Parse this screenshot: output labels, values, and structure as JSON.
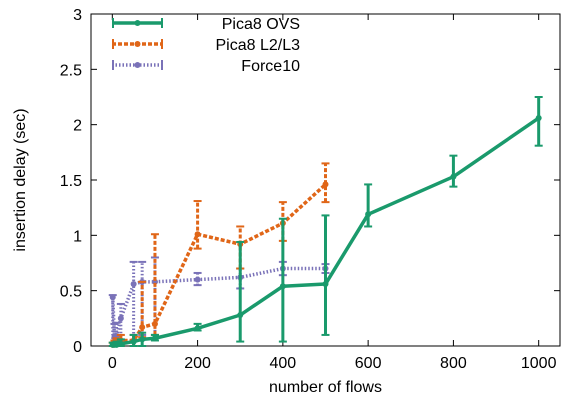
{
  "chart_data": {
    "type": "line",
    "title": "",
    "xlabel": "number of flows",
    "ylabel": "insertion delay (sec)",
    "xlim": [
      -50,
      1050
    ],
    "ylim": [
      0,
      3
    ],
    "xticks": [
      0,
      200,
      400,
      600,
      800,
      1000
    ],
    "yticks": [
      0,
      0.5,
      1,
      1.5,
      2,
      2.5,
      3
    ],
    "xtick_labels": [
      "0",
      "200",
      "400",
      "600",
      "800",
      "1000"
    ],
    "ytick_labels": [
      "0",
      "0.5",
      "1",
      "1.5",
      "2",
      "2.5",
      "3"
    ],
    "grid": false,
    "legend_position": "top-left",
    "series": [
      {
        "name": "Pica8 OVS",
        "color": "#1a9a6c",
        "style": "solid",
        "marker": "bar",
        "x": [
          1,
          5,
          10,
          20,
          50,
          70,
          100,
          200,
          300,
          400,
          500,
          600,
          800,
          1000
        ],
        "y": [
          0.01,
          0.01,
          0.01,
          0.02,
          0.04,
          0.06,
          0.07,
          0.16,
          0.28,
          0.54,
          0.56,
          1.19,
          1.53,
          2.06
        ],
        "ylow": [
          0.0,
          0.0,
          0.0,
          0.0,
          0.0,
          0.0,
          0.05,
          0.14,
          0.04,
          0.04,
          0.1,
          1.08,
          1.44,
          1.81
        ],
        "yhigh": [
          0.03,
          0.03,
          0.04,
          0.06,
          0.1,
          0.12,
          0.1,
          0.2,
          0.94,
          1.15,
          1.18,
          1.46,
          1.72,
          2.25
        ]
      },
      {
        "name": "Pica8 L2/L3",
        "color": "#e06618",
        "style": "dashed",
        "marker": "circle",
        "x": [
          1,
          5,
          10,
          20,
          50,
          70,
          100,
          200,
          300,
          400,
          500
        ],
        "y": [
          0.01,
          0.02,
          0.03,
          0.05,
          0.05,
          0.17,
          0.2,
          1.01,
          0.92,
          1.11,
          1.46
        ],
        "ylow": [
          0.0,
          0.0,
          0.0,
          0.0,
          0.0,
          0.08,
          0.1,
          0.88,
          0.7,
          0.95,
          1.3
        ],
        "yhigh": [
          0.03,
          0.05,
          0.07,
          0.1,
          0.1,
          0.58,
          1.01,
          1.31,
          1.08,
          1.3,
          1.65
        ]
      },
      {
        "name": "Force10",
        "color": "#7a72b8",
        "style": "dotted",
        "marker": "circle",
        "x": [
          1,
          5,
          10,
          20,
          50,
          70,
          100,
          200,
          300,
          400,
          500
        ],
        "y": [
          0.44,
          0.08,
          0.09,
          0.25,
          0.56,
          0.58,
          0.58,
          0.6,
          0.62,
          0.7,
          0.7
        ],
        "ylow": [
          0.0,
          0.0,
          0.0,
          0.02,
          0.05,
          0.1,
          0.1,
          0.55,
          0.52,
          0.64,
          0.66
        ],
        "yhigh": [
          0.46,
          0.2,
          0.21,
          0.38,
          0.76,
          0.76,
          0.8,
          0.66,
          0.7,
          0.76,
          0.74
        ]
      }
    ]
  }
}
